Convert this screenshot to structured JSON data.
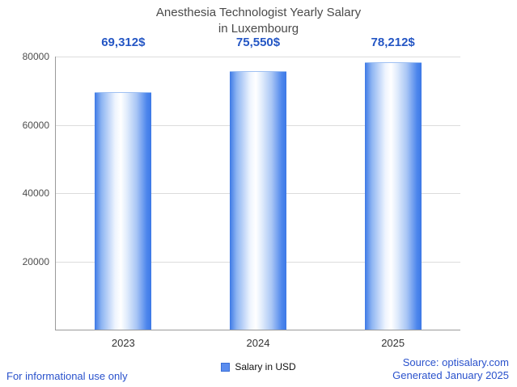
{
  "chart_data": {
    "type": "bar",
    "title": "Anesthesia Technologist Yearly Salary in Luxembourg",
    "title_lines": [
      "Anesthesia Technologist Yearly Salary",
      "in Luxembourg"
    ],
    "categories": [
      "2023",
      "2024",
      "2025"
    ],
    "values": [
      69312,
      75550,
      78212
    ],
    "value_labels": [
      "69,312$",
      "75,550$",
      "78,212$"
    ],
    "series_name": "Salary in USD",
    "xlabel": "",
    "ylabel": "",
    "ylim": [
      0,
      80000
    ],
    "yticks": [
      20000,
      40000,
      60000,
      80000
    ],
    "ytick_labels": [
      "20000",
      "40000",
      "60000",
      "80000"
    ],
    "grid": "horizontal",
    "legend_position": "bottom-center",
    "colors": {
      "bar_edge": "#3d79e6",
      "bar_center": "#ffffff",
      "value_label": "#2456c4",
      "gridline": "#dcdcdc"
    }
  },
  "legend": {
    "label": "Salary in USD"
  },
  "footer": {
    "disclaimer": "For informational use only",
    "source": "Source: optisalary.com",
    "generated": "Generated January 2025"
  }
}
